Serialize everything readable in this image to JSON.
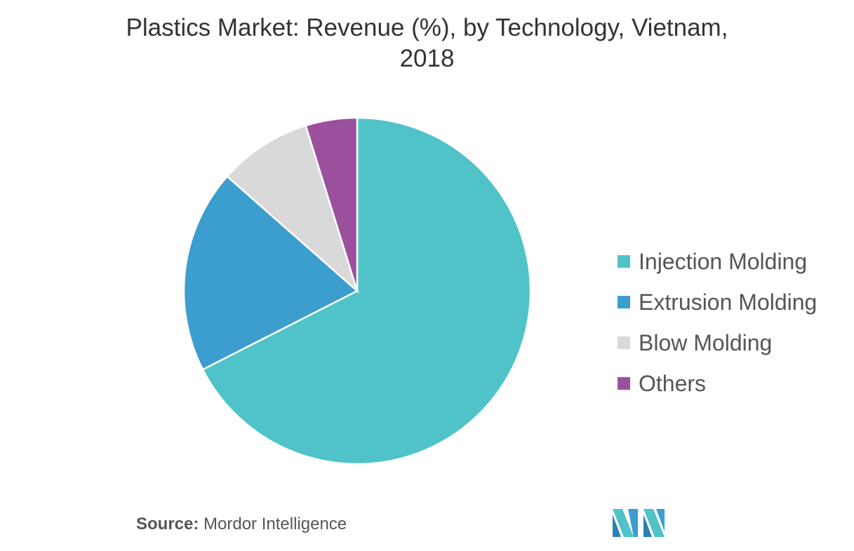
{
  "chart_data": {
    "type": "pie",
    "title_lines": [
      "Plastics Market: Revenue (%), by Technology, Vietnam,",
      "2018"
    ],
    "categories": [
      "Injection Molding",
      "Extrusion Molding",
      "Blow Molding",
      "Others"
    ],
    "values": [
      67.5,
      19,
      8.7,
      4.8
    ],
    "colors": [
      "#50c3c8",
      "#3c9dcf",
      "#d9d9d9",
      "#9b509e"
    ],
    "legend_position": "right"
  },
  "source": {
    "label": "Source:",
    "text": "Mordor Intelligence"
  }
}
